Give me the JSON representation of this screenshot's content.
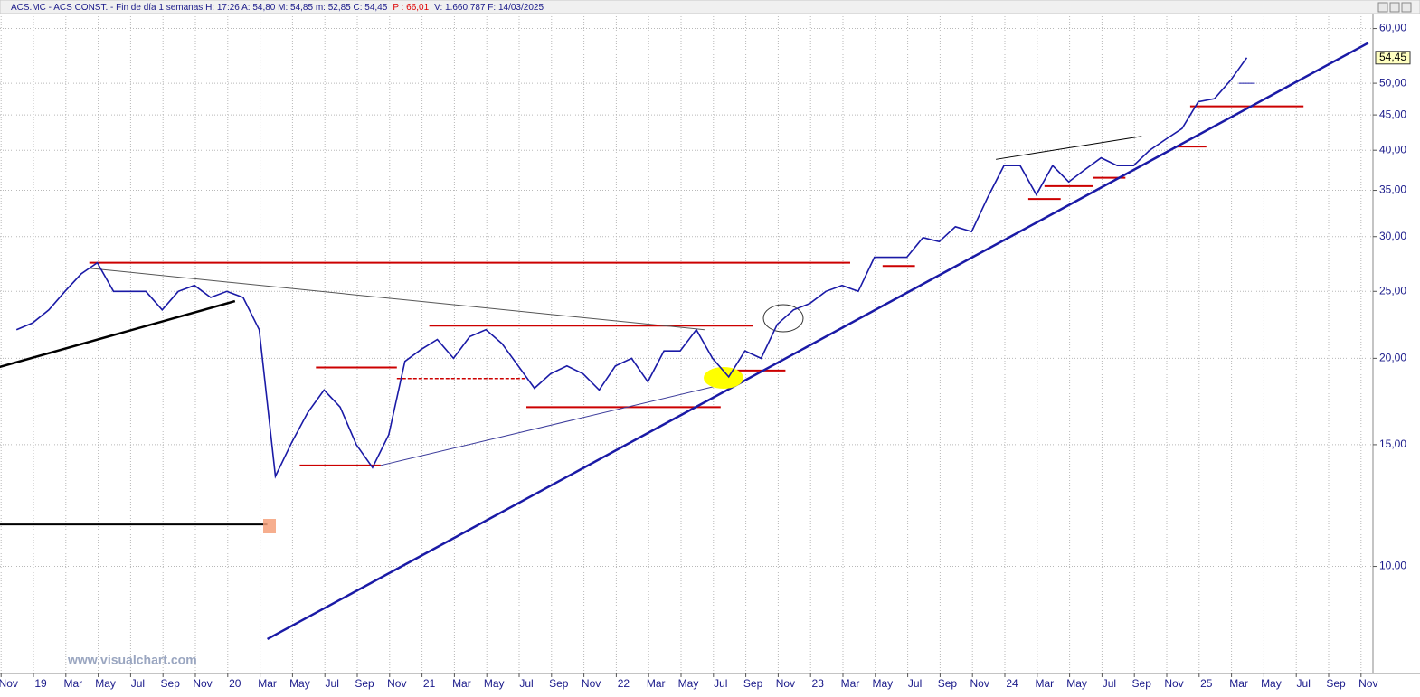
{
  "chart_data": {
    "type": "line",
    "header": {
      "main": "ACS.MC - ACS CONST. - Fin de día 1 semanas  H: 17:26  A: 54,80  M: 54,85  m: 52,85  C: 54,45",
      "alert": "P : 66,01",
      "tail": "V: 1.660.787  F: 14/03/2025"
    },
    "watermark": "www.visualchart.com",
    "color": "#1a1aa6",
    "log": true,
    "grid": true,
    "x": [
      "2018-11",
      "2018-12",
      "2019-01",
      "2019-02",
      "2019-03",
      "2019-04",
      "2019-05",
      "2019-06",
      "2019-07",
      "2019-08",
      "2019-09",
      "2019-10",
      "2019-11",
      "2019-12",
      "2020-01",
      "2020-02",
      "2020-03",
      "2020-04",
      "2020-05",
      "2020-06",
      "2020-07",
      "2020-08",
      "2020-09",
      "2020-10",
      "2020-11",
      "2020-12",
      "2021-01",
      "2021-02",
      "2021-03",
      "2021-04",
      "2021-05",
      "2021-06",
      "2021-07",
      "2021-08",
      "2021-09",
      "2021-10",
      "2021-11",
      "2021-12",
      "2022-01",
      "2022-02",
      "2022-03",
      "2022-04",
      "2022-05",
      "2022-06",
      "2022-07",
      "2022-08",
      "2022-09",
      "2022-10",
      "2022-11",
      "2022-12",
      "2023-01",
      "2023-02",
      "2023-03",
      "2023-04",
      "2023-05",
      "2023-06",
      "2023-07",
      "2023-08",
      "2023-09",
      "2023-10",
      "2023-11",
      "2023-12",
      "2024-01",
      "2024-02",
      "2024-03",
      "2024-04",
      "2024-05",
      "2024-06",
      "2024-07",
      "2024-08",
      "2024-09",
      "2024-10",
      "2024-11",
      "2024-12",
      "2025-01",
      "2025-02",
      "2025-03"
    ],
    "values": [
      22,
      22.5,
      23.5,
      25,
      26.5,
      27.5,
      25,
      25,
      25,
      23.5,
      25,
      25.5,
      24.5,
      25,
      24.5,
      22,
      13.5,
      15.1,
      16.7,
      18,
      17,
      15,
      13.9,
      15.5,
      19.8,
      20.6,
      21.3,
      20,
      21.5,
      22,
      21,
      19.5,
      18.1,
      19,
      19.5,
      19,
      18,
      19.5,
      20,
      18.5,
      20.5,
      20.5,
      22,
      20,
      18.8,
      20.5,
      20,
      22.4,
      23.5,
      24,
      25,
      25.5,
      25,
      28,
      28,
      28,
      29.9,
      29.5,
      31,
      30.5,
      34.2,
      38,
      38,
      34.5,
      38,
      36,
      37.5,
      39,
      38,
      38,
      40,
      41.5,
      43,
      47,
      47.5,
      50.5,
      54.45
    ],
    "last_price": {
      "value": 54.45,
      "label": "54,45"
    },
    "ylim": [
      7,
      62.5
    ],
    "yticks": [
      {
        "value": 10,
        "label": "10,00"
      },
      {
        "value": 15,
        "label": "15,00"
      },
      {
        "value": 20,
        "label": "20,00"
      },
      {
        "value": 25,
        "label": "25,00"
      },
      {
        "value": 30,
        "label": "30,00"
      },
      {
        "value": 35,
        "label": "35,00"
      },
      {
        "value": 40,
        "label": "40,00"
      },
      {
        "value": 45,
        "label": "45,00"
      },
      {
        "value": 50,
        "label": "50,00"
      },
      {
        "value": 60,
        "label": "60,00"
      }
    ],
    "xlim": [
      "2018-10",
      "2025-11"
    ],
    "xticks": [
      {
        "value": "2018-11",
        "label": "Nov"
      },
      {
        "value": "2019-01",
        "label": "19"
      },
      {
        "value": "2019-03",
        "label": "Mar"
      },
      {
        "value": "2019-05",
        "label": "May"
      },
      {
        "value": "2019-07",
        "label": "Jul"
      },
      {
        "value": "2019-09",
        "label": "Sep"
      },
      {
        "value": "2019-11",
        "label": "Nov"
      },
      {
        "value": "2020-01",
        "label": "20"
      },
      {
        "value": "2020-03",
        "label": "Mar"
      },
      {
        "value": "2020-05",
        "label": "May"
      },
      {
        "value": "2020-07",
        "label": "Jul"
      },
      {
        "value": "2020-09",
        "label": "Sep"
      },
      {
        "value": "2020-11",
        "label": "Nov"
      },
      {
        "value": "2021-01",
        "label": "21"
      },
      {
        "value": "2021-03",
        "label": "Mar"
      },
      {
        "value": "2021-05",
        "label": "May"
      },
      {
        "value": "2021-07",
        "label": "Jul"
      },
      {
        "value": "2021-09",
        "label": "Sep"
      },
      {
        "value": "2021-11",
        "label": "Nov"
      },
      {
        "value": "2022-01",
        "label": "22"
      },
      {
        "value": "2022-03",
        "label": "Mar"
      },
      {
        "value": "2022-05",
        "label": "May"
      },
      {
        "value": "2022-07",
        "label": "Jul"
      },
      {
        "value": "2022-09",
        "label": "Sep"
      },
      {
        "value": "2022-11",
        "label": "Nov"
      },
      {
        "value": "2023-01",
        "label": "23"
      },
      {
        "value": "2023-03",
        "label": "Mar"
      },
      {
        "value": "2023-05",
        "label": "May"
      },
      {
        "value": "2023-07",
        "label": "Jul"
      },
      {
        "value": "2023-09",
        "label": "Sep"
      },
      {
        "value": "2023-11",
        "label": "Nov"
      },
      {
        "value": "2024-01",
        "label": "24"
      },
      {
        "value": "2024-03",
        "label": "Mar"
      },
      {
        "value": "2024-05",
        "label": "May"
      },
      {
        "value": "2024-07",
        "label": "Jul"
      },
      {
        "value": "2024-09",
        "label": "Sep"
      },
      {
        "value": "2024-11",
        "label": "Nov"
      },
      {
        "value": "2025-01",
        "label": "25"
      },
      {
        "value": "2025-03",
        "label": "Mar"
      },
      {
        "value": "2025-05",
        "label": "May"
      },
      {
        "value": "2025-07",
        "label": "Jul"
      },
      {
        "value": "2025-09",
        "label": "Sep"
      },
      {
        "value": "2025-11",
        "label": "Nov"
      }
    ],
    "lines": [
      {
        "x": [
          "2019-04",
          "2023-03"
        ],
        "y": [
          27.5,
          27.5
        ],
        "color": "#cc0000",
        "style": "solid"
      },
      {
        "x": [
          "2021-01",
          "2022-09"
        ],
        "y": [
          22.3,
          22.3
        ],
        "color": "#cc0000",
        "style": "solid"
      },
      {
        "x": [
          "2020-06",
          "2020-11"
        ],
        "y": [
          19.4,
          19.4
        ],
        "color": "#cc0000",
        "style": "solid"
      },
      {
        "x": [
          "2020-11",
          "2021-07"
        ],
        "y": [
          18.7,
          18.7
        ],
        "color": "#cc0000",
        "style": "dashed"
      },
      {
        "x": [
          "2021-07",
          "2022-07"
        ],
        "y": [
          17,
          17
        ],
        "color": "#cc0000",
        "style": "solid"
      },
      {
        "x": [
          "2020-05",
          "2020-10"
        ],
        "y": [
          14,
          14
        ],
        "color": "#cc0000",
        "style": "solid"
      },
      {
        "x": [
          "2022-08",
          "2022-11"
        ],
        "y": [
          19.2,
          19.2
        ],
        "color": "#cc0000",
        "style": "solid"
      },
      {
        "x": [
          "2023-05",
          "2023-07"
        ],
        "y": [
          27.2,
          27.2
        ],
        "color": "#cc0000",
        "style": "solid"
      },
      {
        "x": [
          "2024-02",
          "2024-04"
        ],
        "y": [
          34,
          34
        ],
        "color": "#cc0000",
        "style": "solid"
      },
      {
        "x": [
          "2024-03",
          "2024-06"
        ],
        "y": [
          35.5,
          35.5
        ],
        "color": "#cc0000",
        "style": "solid"
      },
      {
        "x": [
          "2024-06",
          "2024-08"
        ],
        "y": [
          36.5,
          36.5
        ],
        "color": "#cc0000",
        "style": "solid"
      },
      {
        "x": [
          "2024-11",
          "2025-01"
        ],
        "y": [
          40.5,
          40.5
        ],
        "color": "#cc0000",
        "style": "solid"
      },
      {
        "x": [
          "2024-12",
          "2025-07"
        ],
        "y": [
          46.3,
          46.3
        ],
        "color": "#cc0000",
        "style": "solid"
      },
      {
        "x": [
          "2020-03",
          "2025-11"
        ],
        "y": [
          7.85,
          57.2
        ],
        "color": "#1a1aa6",
        "style": "thick"
      },
      {
        "x": [
          "2018-10",
          "2020-01"
        ],
        "y": [
          19.3,
          24.2
        ],
        "color": "#000000",
        "style": "thick"
      },
      {
        "x": [
          "2018-10",
          "2020-03"
        ],
        "y": [
          11.5,
          11.5
        ],
        "color": "#000000",
        "style": "solid"
      },
      {
        "x": [
          "2019-04",
          "2022-06"
        ],
        "y": [
          27,
          22
        ],
        "color": "#555555",
        "style": "thin"
      },
      {
        "x": [
          "2020-10",
          "2022-07"
        ],
        "y": [
          14,
          18.3
        ],
        "color": "#3a3a9a",
        "style": "thin"
      },
      {
        "x": [
          "2023-12",
          "2024-09"
        ],
        "y": [
          38.8,
          41.9
        ],
        "color": "#000000",
        "style": "thin"
      },
      {
        "x": [
          "2025-03",
          "2025-04"
        ],
        "y": [
          50,
          50
        ],
        "color": "#1a1aa6",
        "style": "thin"
      }
    ]
  }
}
